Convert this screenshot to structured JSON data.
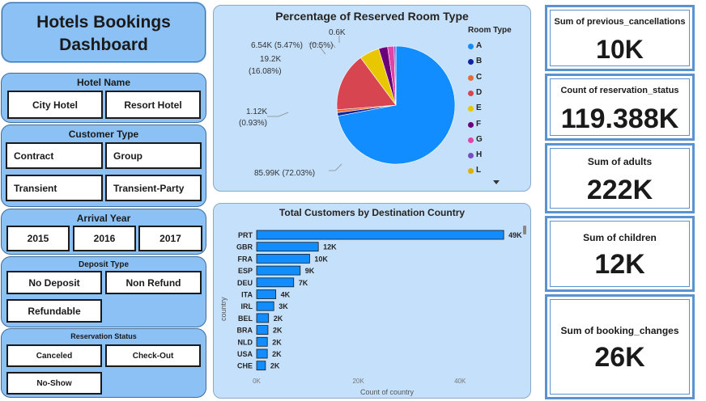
{
  "dashboard": {
    "title_line1": "Hotels Bookings",
    "title_line2": "Dashboard"
  },
  "slicers": {
    "hotel_name": {
      "title": "Hotel Name",
      "options": [
        "City Hotel",
        "Resort Hotel"
      ]
    },
    "customer_type": {
      "title": "Customer Type",
      "options": [
        "Contract",
        "Group",
        "Transient",
        "Transient-Party"
      ]
    },
    "arrival_year": {
      "title": "Arrival Year",
      "options": [
        "2015",
        "2016",
        "2017"
      ]
    },
    "deposit_type": {
      "title": "Deposit Type",
      "options": [
        "No Deposit",
        "Non Refund",
        "Refundable"
      ]
    },
    "reservation_status": {
      "title": "Reservation Status",
      "options": [
        "Canceled",
        "Check-Out",
        "No-Show"
      ]
    }
  },
  "pie": {
    "legend_title": "Room Type",
    "labels": {
      "a": "85.99K (72.03%)",
      "d_value": "19.2K",
      "d_pct": "(16.08%)",
      "e": "6.54K (5.47%)",
      "f_small": "(0.5%)",
      "top": "0.6K",
      "b_value": "1.12K",
      "b_pct": "(0.93%)"
    }
  },
  "bar": {
    "value_labels": [
      "49K",
      "12K",
      "10K",
      "9K",
      "7K",
      "4K",
      "3K",
      "2K",
      "2K",
      "2K",
      "2K",
      "2K"
    ]
  },
  "kpis": [
    {
      "label": "Sum of previous_cancellations",
      "value": "10K"
    },
    {
      "label": "Count of reservation_status",
      "value": "119.388K"
    },
    {
      "label": "Sum of adults",
      "value": "222K"
    },
    {
      "label": "Sum of children",
      "value": "12K"
    },
    {
      "label": "Sum of booking_changes",
      "value": "26K"
    }
  ],
  "chart_data": [
    {
      "type": "pie",
      "title": "Percentage of Reserved Room Type",
      "legend": [
        "A",
        "B",
        "C",
        "D",
        "E",
        "F",
        "G",
        "H",
        "L"
      ],
      "legend_position": "right",
      "categories": [
        "A",
        "B",
        "C",
        "D",
        "E",
        "F",
        "G",
        "H",
        "L"
      ],
      "values": [
        85990,
        1120,
        930,
        19200,
        6540,
        2900,
        2100,
        600,
        6
      ],
      "colors": [
        "#118dff",
        "#12239e",
        "#e66c37",
        "#d64550",
        "#e8c600",
        "#6b007b",
        "#e044a7",
        "#744ec2",
        "#d9b300"
      ]
    },
    {
      "type": "bar",
      "orientation": "horizontal",
      "title": "Total Customers by Destination Country",
      "xlabel": "Count of country",
      "ylabel": "country",
      "categories": [
        "PRT",
        "GBR",
        "FRA",
        "ESP",
        "DEU",
        "ITA",
        "IRL",
        "BEL",
        "BRA",
        "NLD",
        "USA",
        "CHE"
      ],
      "values": [
        48590,
        12129,
        10415,
        8568,
        7287,
        3766,
        3375,
        2342,
        2224,
        2104,
        2097,
        1730
      ],
      "xticks": [
        "0K",
        "20K",
        "40K"
      ],
      "xlim": [
        0,
        50000
      ],
      "color": "#118dff"
    }
  ]
}
